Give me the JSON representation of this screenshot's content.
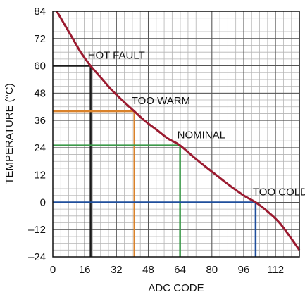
{
  "chart_data": {
    "type": "line",
    "title": "",
    "xlabel": "ADC CODE",
    "ylabel": "TEMPERATURE (°C)",
    "xlim": [
      0,
      124
    ],
    "ylim": [
      -24,
      84
    ],
    "xticks": [
      0,
      16,
      32,
      48,
      64,
      80,
      96,
      112
    ],
    "yticks": [
      84,
      72,
      60,
      48,
      36,
      24,
      12,
      0,
      -12,
      -24
    ],
    "xtick_labels": [
      "0",
      "16",
      "32",
      "48",
      "64",
      "80",
      "96",
      "112"
    ],
    "ytick_labels": [
      "84",
      "72",
      "60",
      "48",
      "36",
      "24",
      "12",
      "0",
      "–12",
      "–24"
    ],
    "grid": true,
    "series": [
      {
        "color": "#9b1b30",
        "x": [
          2,
          6,
          10,
          14,
          19,
          24,
          30,
          36,
          41,
          46,
          52,
          58,
          64,
          72,
          80,
          88,
          96,
          102,
          108,
          114,
          120,
          124
        ],
        "y": [
          84,
          78,
          72,
          66,
          60,
          55,
          49,
          44,
          40,
          36,
          32,
          28,
          25,
          19,
          13.5,
          8,
          3,
          0,
          -4,
          -9,
          -16,
          -21
        ]
      }
    ],
    "thresholds": [
      {
        "label": "HOT FAULT",
        "x": 19,
        "y": 60,
        "color": "#1a1a1a"
      },
      {
        "label": "TOO WARM",
        "x": 41,
        "y": 40,
        "color": "#d9822b"
      },
      {
        "label": "NOMINAL",
        "x": 64,
        "y": 25,
        "color": "#3c9a4a"
      },
      {
        "label": "TOO COLD",
        "x": 102,
        "y": 0,
        "color": "#1f4e9c"
      }
    ]
  }
}
